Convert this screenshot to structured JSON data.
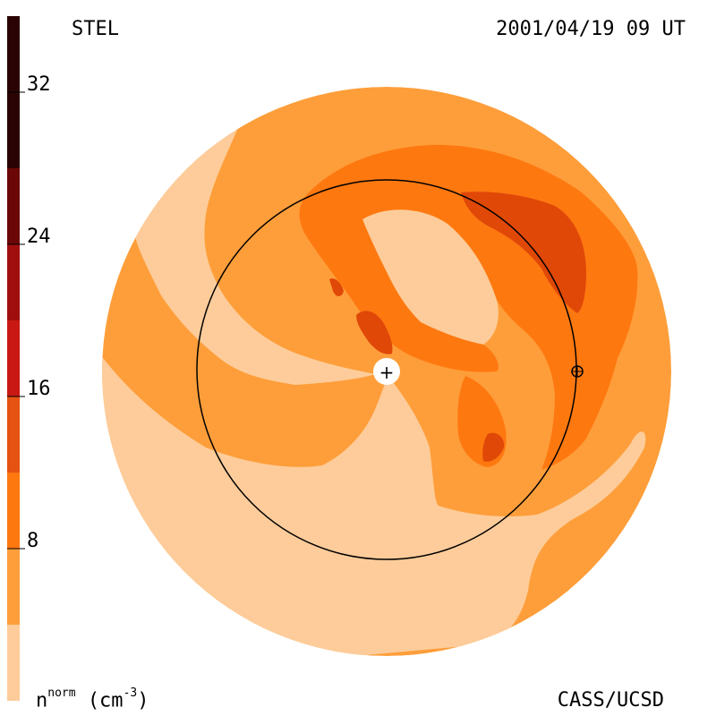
{
  "header": {
    "left": "STEL",
    "right": "2001/04/19 09 UT"
  },
  "footer": {
    "credit": "CASS/UCSD",
    "unit_base": "n",
    "unit_sup": "norm",
    "unit_paren": "(cm",
    "unit_exp": "-3",
    "unit_close": ")"
  },
  "colorbar": {
    "ticks": [
      "8",
      "16",
      "24",
      "32"
    ],
    "colors": [
      "#fdcc9a",
      "#fe9e3a",
      "#fe7810",
      "#e65212",
      "#c91813",
      "#a10e0e",
      "#6b0707",
      "#2a0404"
    ]
  },
  "palette": {
    "lightest": "#fdcc9a",
    "light": "#fe9e3a",
    "medium": "#fe7810",
    "dark": "#e04808"
  },
  "markers": {
    "sun": "+",
    "earth": "⊕"
  }
}
